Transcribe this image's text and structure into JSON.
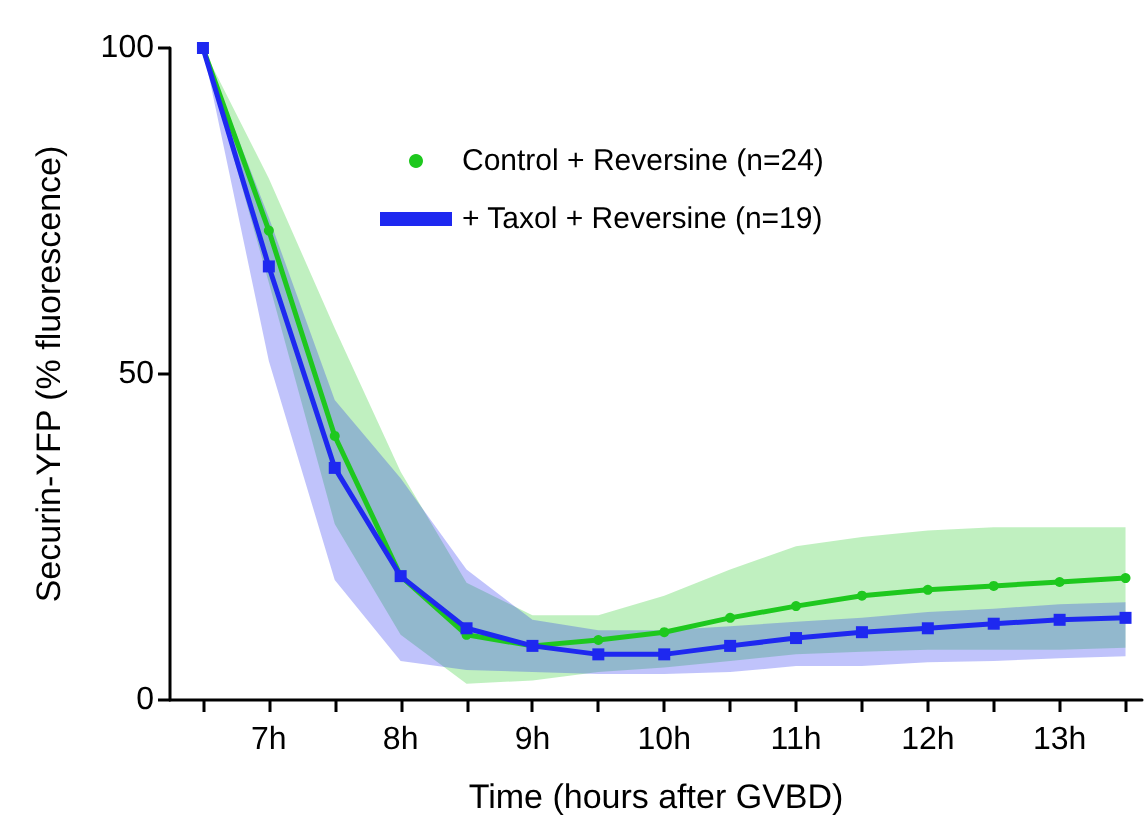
{
  "chart_data": {
    "type": "line",
    "xlabel": "Time (hours after GVBD)",
    "ylabel": "Securin-YFP (% fluorescence)",
    "x": [
      6.5,
      7,
      7.5,
      8,
      8.5,
      9,
      9.5,
      10,
      10.5,
      11,
      11.5,
      12,
      12.5,
      13,
      13.5
    ],
    "xlim": [
      6.25,
      13.625
    ],
    "xticks": [
      {
        "value": 6.5,
        "label": null
      },
      {
        "value": 7,
        "label": "7h"
      },
      {
        "value": 7.5,
        "label": null
      },
      {
        "value": 8,
        "label": "8h"
      },
      {
        "value": 8.5,
        "label": null
      },
      {
        "value": 9,
        "label": "9h"
      },
      {
        "value": 9.5,
        "label": null
      },
      {
        "value": 10,
        "label": "10h"
      },
      {
        "value": 10.5,
        "label": null
      },
      {
        "value": 11,
        "label": "11h"
      },
      {
        "value": 11.5,
        "label": null
      },
      {
        "value": 12,
        "label": "12h"
      },
      {
        "value": 12.5,
        "label": null
      },
      {
        "value": 13,
        "label": "13h"
      },
      {
        "value": 13.5,
        "label": null
      }
    ],
    "ylim": [
      0,
      100
    ],
    "yticks": [
      0,
      50,
      100
    ],
    "grid": false,
    "legend": "top",
    "line_style": "solid",
    "series": [
      {
        "name": "Control + Reversine (n=24)",
        "color": "#1ec81e",
        "marker": "circle",
        "values": [
          100,
          72,
          40.5,
          19,
          10,
          8.3,
          9.2,
          10.4,
          12.6,
          14.4,
          16,
          16.9,
          17.5,
          18.1,
          18.7
        ],
        "lower": [
          100,
          64,
          27,
          10,
          2.5,
          3,
          4.3,
          5,
          6,
          7,
          7.4,
          7.7,
          7.7,
          7.7,
          8
        ],
        "upper": [
          100,
          80,
          57,
          35,
          18,
          13,
          13,
          16,
          20,
          23.6,
          25,
          26,
          26.5,
          26.5,
          26.5
        ]
      },
      {
        "name": "+ Taxol + Reversine (n=19)",
        "color": "#1e28f0",
        "marker": "square",
        "values": [
          100,
          66.5,
          35.6,
          19,
          11,
          8.3,
          7,
          7,
          8.3,
          9.5,
          10.4,
          11,
          11.7,
          12.3,
          12.6
        ],
        "lower": [
          100,
          52,
          18.4,
          6,
          4.6,
          4.3,
          4,
          4,
          4.3,
          5.2,
          5.2,
          5.8,
          6,
          6.4,
          6.7
        ],
        "upper": [
          100,
          74,
          46,
          34,
          20,
          12.3,
          10.7,
          10.7,
          11.3,
          12,
          12.6,
          13.5,
          14,
          14.7,
          15
        ]
      }
    ]
  }
}
